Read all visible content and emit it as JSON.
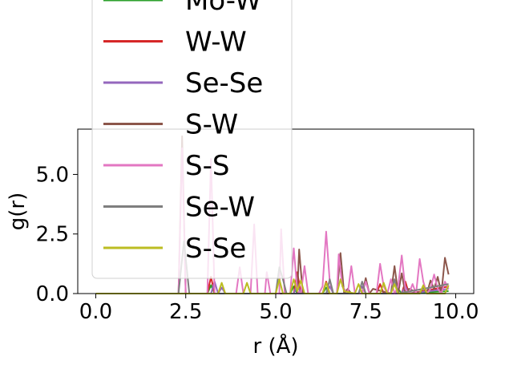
{
  "chart_data": {
    "type": "line",
    "xlabel": "r (Å)",
    "ylabel": "g(r)",
    "xlim": [
      -0.5,
      10.5
    ],
    "ylim": [
      0,
      6.9
    ],
    "xticks": [
      0.0,
      2.5,
      5.0,
      7.5,
      10.0
    ],
    "xtick_labels": [
      "0.0",
      "2.5",
      "5.0",
      "7.5",
      "10.0"
    ],
    "yticks": [
      0.0,
      2.5,
      5.0
    ],
    "ytick_labels": [
      "0.0",
      "2.5",
      "5.0"
    ],
    "grid": false,
    "legend_placement": "upper-left, overlapping the plot and extending above it",
    "series": [
      {
        "name": "Mo-W",
        "color": "#2ca02c",
        "x": [
          0,
          3.1,
          3.2,
          3.3,
          5.4,
          5.5,
          5.6,
          6.3,
          6.4,
          6.5,
          8.3,
          8.4,
          8.5,
          9.8
        ],
        "y": [
          0,
          0,
          0.35,
          0,
          0,
          0.3,
          0,
          0,
          0.25,
          0,
          0,
          0.2,
          0,
          0.1
        ]
      },
      {
        "name": "W-W",
        "color": "#d62728",
        "x": [
          0,
          3.1,
          3.2,
          3.3,
          5.5,
          5.6,
          5.7,
          6.3,
          6.4,
          6.5,
          7.8,
          7.9,
          8.0,
          8.5,
          8.6,
          8.7,
          9.8
        ],
        "y": [
          0,
          0,
          0.7,
          0,
          0,
          0.9,
          0,
          0,
          0.5,
          0,
          0,
          0.4,
          0,
          0,
          0.5,
          0,
          0.3
        ]
      },
      {
        "name": "Se-Se",
        "color": "#9467bd",
        "x": [
          0,
          3.2,
          3.3,
          3.4,
          3.5,
          3.6,
          5.5,
          5.6,
          5.7,
          6.4,
          6.5,
          6.6,
          7.3,
          7.4,
          7.5,
          8.5,
          8.6,
          8.7,
          9.8
        ],
        "y": [
          0,
          0,
          0.5,
          0,
          0.25,
          0,
          0,
          0.4,
          0,
          0,
          0.3,
          0,
          0,
          0.3,
          0,
          0,
          0.3,
          0,
          0.2
        ]
      },
      {
        "name": "S-W",
        "color": "#8c564b",
        "x": [
          0,
          2.3,
          2.4,
          2.5,
          2.6,
          5.6,
          5.65,
          5.75,
          6.7,
          6.8,
          6.9,
          7.0,
          7.1,
          7.4,
          7.5,
          7.6,
          7.7,
          8.2,
          8.3,
          8.4,
          8.5,
          8.6,
          8.7,
          9.0,
          9.1,
          9.2,
          9.3,
          9.4,
          9.5,
          9.6,
          9.7,
          9.8
        ],
        "y": [
          0,
          0,
          6.6,
          0,
          0,
          0,
          1.85,
          0,
          0,
          1.7,
          0,
          0.2,
          0,
          0,
          0.65,
          0,
          0.2,
          0,
          1.15,
          0,
          0.85,
          0,
          0.2,
          0,
          0.25,
          0,
          0.55,
          0.2,
          0.7,
          0,
          1.5,
          0.8
        ]
      },
      {
        "name": "S-S",
        "color": "#e377c2",
        "x": [
          0,
          2.3,
          2.4,
          2.5,
          3.1,
          3.2,
          3.3,
          3.9,
          4.0,
          4.1,
          4.3,
          4.4,
          4.5,
          4.6,
          4.7,
          4.75,
          4.85,
          5.1,
          5.15,
          5.25,
          5.4,
          5.5,
          5.6,
          5.7,
          5.8,
          5.9,
          6.2,
          6.3,
          6.4,
          6.5,
          6.6,
          6.7,
          6.75,
          6.85,
          7.0,
          7.1,
          7.2,
          7.4,
          7.5,
          7.6,
          7.8,
          7.9,
          8.0,
          8.1,
          8.2,
          8.3,
          8.4,
          8.5,
          8.6,
          8.7,
          8.8,
          8.9,
          9.0,
          9.1,
          9.2,
          9.3,
          9.4,
          9.5,
          9.6,
          9.7,
          9.8
        ],
        "y": [
          0,
          0,
          6.1,
          0,
          0,
          5.65,
          0,
          0,
          1.1,
          0,
          0,
          2.9,
          0,
          0,
          0,
          0.9,
          0,
          0,
          2.7,
          0,
          0,
          1.9,
          0.1,
          0,
          1.15,
          0,
          0,
          0.3,
          2.6,
          0.5,
          0,
          0,
          1.65,
          0.3,
          0,
          1.15,
          0,
          0,
          0.5,
          0,
          0,
          1.25,
          0.3,
          0,
          0.6,
          0,
          0.3,
          1.6,
          0.2,
          0,
          0.4,
          0,
          1.45,
          0.5,
          0,
          0.2,
          0.8,
          0.2,
          0,
          0.5,
          0.2
        ]
      },
      {
        "name": "Se-W",
        "color": "#7f7f7f",
        "x": [
          0,
          2.3,
          2.45,
          2.6,
          5.0,
          5.1,
          5.2,
          5.3,
          6.4,
          6.5,
          6.6,
          7.3,
          7.4,
          7.5,
          8.2,
          8.3,
          8.4,
          9.8
        ],
        "y": [
          0,
          0,
          2.2,
          0,
          0,
          1.1,
          0.6,
          0,
          0,
          0.6,
          0,
          0,
          0.5,
          0,
          0,
          0.6,
          0,
          0.4
        ]
      },
      {
        "name": "S-Se",
        "color": "#bcbd22",
        "x": [
          0,
          3.4,
          3.5,
          3.6,
          4.1,
          4.2,
          4.3,
          5.0,
          5.1,
          5.2,
          5.4,
          5.5,
          5.6,
          5.7,
          5.8,
          6.3,
          6.4,
          6.5,
          6.7,
          6.8,
          6.9,
          7.2,
          7.3,
          7.4,
          7.9,
          8.0,
          8.1,
          8.2,
          8.3,
          8.4,
          9.0,
          9.1,
          9.2,
          9.7,
          9.8
        ],
        "y": [
          0,
          0,
          0.45,
          0,
          0,
          0.45,
          0,
          0,
          0.6,
          0,
          0,
          0.6,
          0.1,
          0.55,
          0,
          0,
          0.45,
          0,
          0,
          0.6,
          0.1,
          0,
          0.4,
          0,
          0,
          0.45,
          0,
          0,
          0.4,
          0,
          0,
          0.35,
          0,
          0,
          0.35
        ]
      }
    ]
  }
}
